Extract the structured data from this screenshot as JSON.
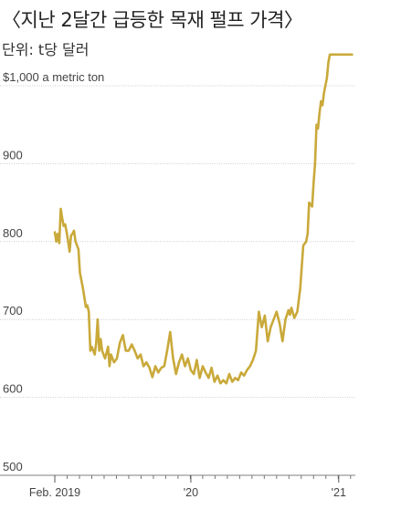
{
  "title": "〈지난 2달간 급등한 목재 펄프 가격〉",
  "unit_label": "단위: t당 달러",
  "chart_data": {
    "type": "line",
    "ylim": [
      500,
      1050
    ],
    "y_ticks": [
      {
        "value": 1000,
        "label": "$1,000 a metric ton"
      },
      {
        "value": 900,
        "label": "900"
      },
      {
        "value": 800,
        "label": "800"
      },
      {
        "value": 700,
        "label": "700"
      },
      {
        "value": 600,
        "label": "600"
      },
      {
        "value": 500,
        "label": "500"
      }
    ],
    "x_ticks": [
      {
        "value": 2019.08,
        "label": "Feb. 2019"
      },
      {
        "value": 2020.0,
        "label": "'20"
      },
      {
        "value": 2021.0,
        "label": "'21"
      }
    ],
    "xlim": [
      2019.08,
      2021.1
    ],
    "grid": true,
    "line_color": "#c9a93a",
    "grid_color": "#cccccc",
    "series": [
      {
        "x": [
          2019.08,
          2019.09,
          2019.1,
          2019.11,
          2019.12,
          2019.13,
          2019.14,
          2019.15,
          2019.16,
          2019.17,
          2019.18,
          2019.19,
          2019.2,
          2019.21,
          2019.22,
          2019.23,
          2019.24,
          2019.25,
          2019.27,
          2019.29,
          2019.3,
          2019.31,
          2019.32,
          2019.33,
          2019.35,
          2019.36,
          2019.37,
          2019.38,
          2019.39,
          2019.4,
          2019.42,
          2019.44,
          2019.45,
          2019.46,
          2019.48,
          2019.5,
          2019.52,
          2019.54,
          2019.56,
          2019.58,
          2019.6,
          2019.62,
          2019.64,
          2019.66,
          2019.68,
          2019.7,
          2019.72,
          2019.74,
          2019.76,
          2019.78,
          2019.8,
          2019.82,
          2019.84,
          2019.86,
          2019.88,
          2019.9,
          2019.92,
          2019.94,
          2019.96,
          2019.98,
          2020.0,
          2020.02,
          2020.04,
          2020.06,
          2020.08,
          2020.1,
          2020.12,
          2020.14,
          2020.16,
          2020.18,
          2020.2,
          2020.22,
          2020.24,
          2020.26,
          2020.28,
          2020.3,
          2020.32,
          2020.34,
          2020.36,
          2020.38,
          2020.4,
          2020.42,
          2020.44,
          2020.46,
          2020.48,
          2020.5,
          2020.52,
          2020.54,
          2020.56,
          2020.58,
          2020.6,
          2020.62,
          2020.64,
          2020.66,
          2020.67,
          2020.68,
          2020.7,
          2020.72,
          2020.74,
          2020.76,
          2020.78,
          2020.79,
          2020.8,
          2020.82,
          2020.83,
          2020.84,
          2020.85,
          2020.86,
          2020.87,
          2020.88,
          2020.89,
          2020.9,
          2020.91,
          2020.92,
          2020.93,
          2020.94,
          2020.95,
          2020.96,
          2020.97,
          2020.98,
          2020.99,
          2021.0,
          2021.01,
          2021.02,
          2021.03,
          2021.04,
          2021.05,
          2021.06,
          2021.07,
          2021.08,
          2021.09
        ],
        "y": [
          812,
          800,
          810,
          798,
          842,
          830,
          820,
          822,
          812,
          800,
          787,
          808,
          810,
          814,
          800,
          795,
          790,
          760,
          740,
          716,
          718,
          710,
          660,
          665,
          655,
          670,
          700,
          660,
          675,
          660,
          650,
          665,
          640,
          655,
          645,
          650,
          670,
          680,
          660,
          660,
          668,
          660,
          650,
          655,
          640,
          645,
          638,
          626,
          640,
          632,
          638,
          640,
          660,
          684,
          650,
          630,
          645,
          655,
          640,
          650,
          635,
          630,
          648,
          625,
          640,
          632,
          625,
          638,
          620,
          628,
          618,
          622,
          618,
          630,
          620,
          625,
          622,
          632,
          628,
          635,
          640,
          648,
          660,
          710,
          690,
          705,
          672,
          690,
          700,
          710,
          695,
          672,
          700,
          712,
          706,
          715,
          702,
          710,
          740,
          795,
          800,
          810,
          850,
          845,
          875,
          900,
          950,
          945,
          965,
          980,
          975,
          990,
          1000,
          1010,
          1030,
          1040,
          1040,
          1040,
          1040,
          1040,
          1040,
          1040,
          1040,
          1040,
          1040,
          1040,
          1040,
          1040,
          1040,
          1040,
          1040
        ]
      }
    ]
  }
}
